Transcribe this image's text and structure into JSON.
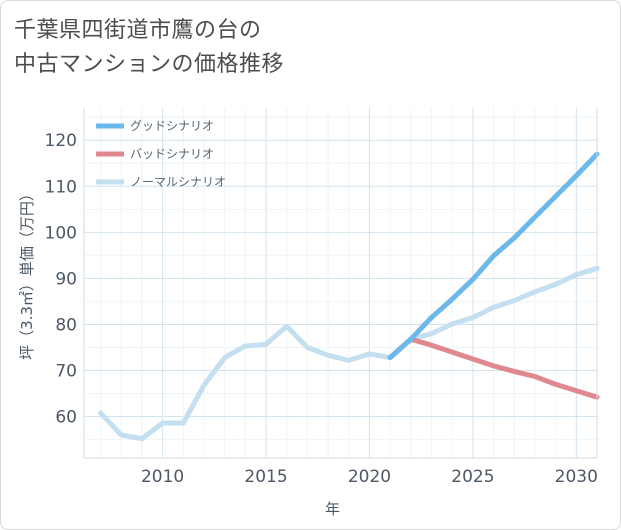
{
  "title": {
    "line1": "千葉県四街道市鷹の台の",
    "line2": "中古マンションの価格推移"
  },
  "chart_data": {
    "type": "line",
    "xlabel": "年",
    "ylabel": "坪（3.3㎡）単価（万円）",
    "xlim": [
      2006.2,
      2031
    ],
    "ylim": [
      51,
      127
    ],
    "x_ticks": [
      2010,
      2015,
      2020,
      2025,
      2030
    ],
    "y_ticks": [
      60,
      70,
      80,
      90,
      100,
      110,
      120
    ],
    "grid": true,
    "legend_position": "top-left",
    "series": [
      {
        "name": "グッドシナリオ",
        "color": "#6cb8ea",
        "points": [
          [
            2021,
            72.8
          ],
          [
            2022,
            76.8
          ],
          [
            2023,
            81.5
          ],
          [
            2024,
            85.5
          ],
          [
            2025,
            89.8
          ],
          [
            2026,
            94.9
          ],
          [
            2027,
            98.8
          ],
          [
            2028,
            103.3
          ],
          [
            2029,
            107.8
          ],
          [
            2030,
            112.3
          ],
          [
            2031,
            117.0
          ]
        ]
      },
      {
        "name": "バッドシナリオ",
        "color": "#e08890",
        "points": [
          [
            2021,
            72.8
          ],
          [
            2022,
            76.8
          ],
          [
            2023,
            75.5
          ],
          [
            2024,
            74.0
          ],
          [
            2025,
            72.5
          ],
          [
            2026,
            71.0
          ],
          [
            2027,
            69.8
          ],
          [
            2028,
            68.7
          ],
          [
            2029,
            67.0
          ],
          [
            2030,
            65.6
          ],
          [
            2031,
            64.2
          ]
        ]
      },
      {
        "name": "ノーマルシナリオ",
        "color": "#c3dff0",
        "points": [
          [
            2007,
            60.8
          ],
          [
            2008,
            56.0
          ],
          [
            2009,
            55.2
          ],
          [
            2010,
            58.6
          ],
          [
            2011,
            58.6
          ],
          [
            2012,
            66.8
          ],
          [
            2013,
            72.8
          ],
          [
            2014,
            75.3
          ],
          [
            2015,
            75.7
          ],
          [
            2016,
            79.6
          ],
          [
            2017,
            75.0
          ],
          [
            2018,
            73.3
          ],
          [
            2019,
            72.2
          ],
          [
            2020,
            73.6
          ],
          [
            2021,
            72.8
          ],
          [
            2022,
            76.8
          ],
          [
            2023,
            78.0
          ],
          [
            2024,
            80.1
          ],
          [
            2025,
            81.5
          ],
          [
            2026,
            83.7
          ],
          [
            2027,
            85.2
          ],
          [
            2028,
            87.1
          ],
          [
            2029,
            88.7
          ],
          [
            2030,
            90.8
          ],
          [
            2031,
            92.2
          ]
        ]
      }
    ]
  }
}
